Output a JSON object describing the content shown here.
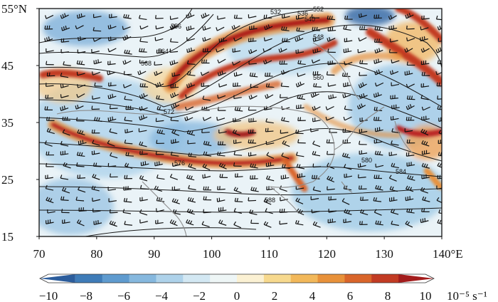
{
  "map": {
    "lon_range": [
      70,
      140
    ],
    "lat_range": [
      15,
      55
    ],
    "lon_ticks": [
      "70",
      "80",
      "90",
      "100",
      "110",
      "120",
      "130",
      "140°E"
    ],
    "lat_ticks": [
      "15",
      "25",
      "35",
      "45",
      "55°N"
    ],
    "contour_labels": [
      "532",
      "536",
      "540",
      "548",
      "552",
      "556",
      "560",
      "564",
      "568",
      "572",
      "576",
      "580",
      "584",
      "588"
    ],
    "colorbar": {
      "ticks": [
        "−10",
        "−8",
        "−6",
        "−4",
        "−2",
        "0",
        "2",
        "4",
        "6",
        "8",
        "10"
      ],
      "unit": "10⁻⁵ s⁻¹",
      "colors": [
        "#2c5d9c",
        "#3f7cb8",
        "#5f9bcf",
        "#86b8de",
        "#aed2ea",
        "#d3e8f3",
        "#eef6f6",
        "#fbf1d3",
        "#f7d98e",
        "#f2b85a",
        "#e8913a",
        "#d9652a",
        "#c23b23",
        "#a31c1c"
      ]
    }
  }
}
